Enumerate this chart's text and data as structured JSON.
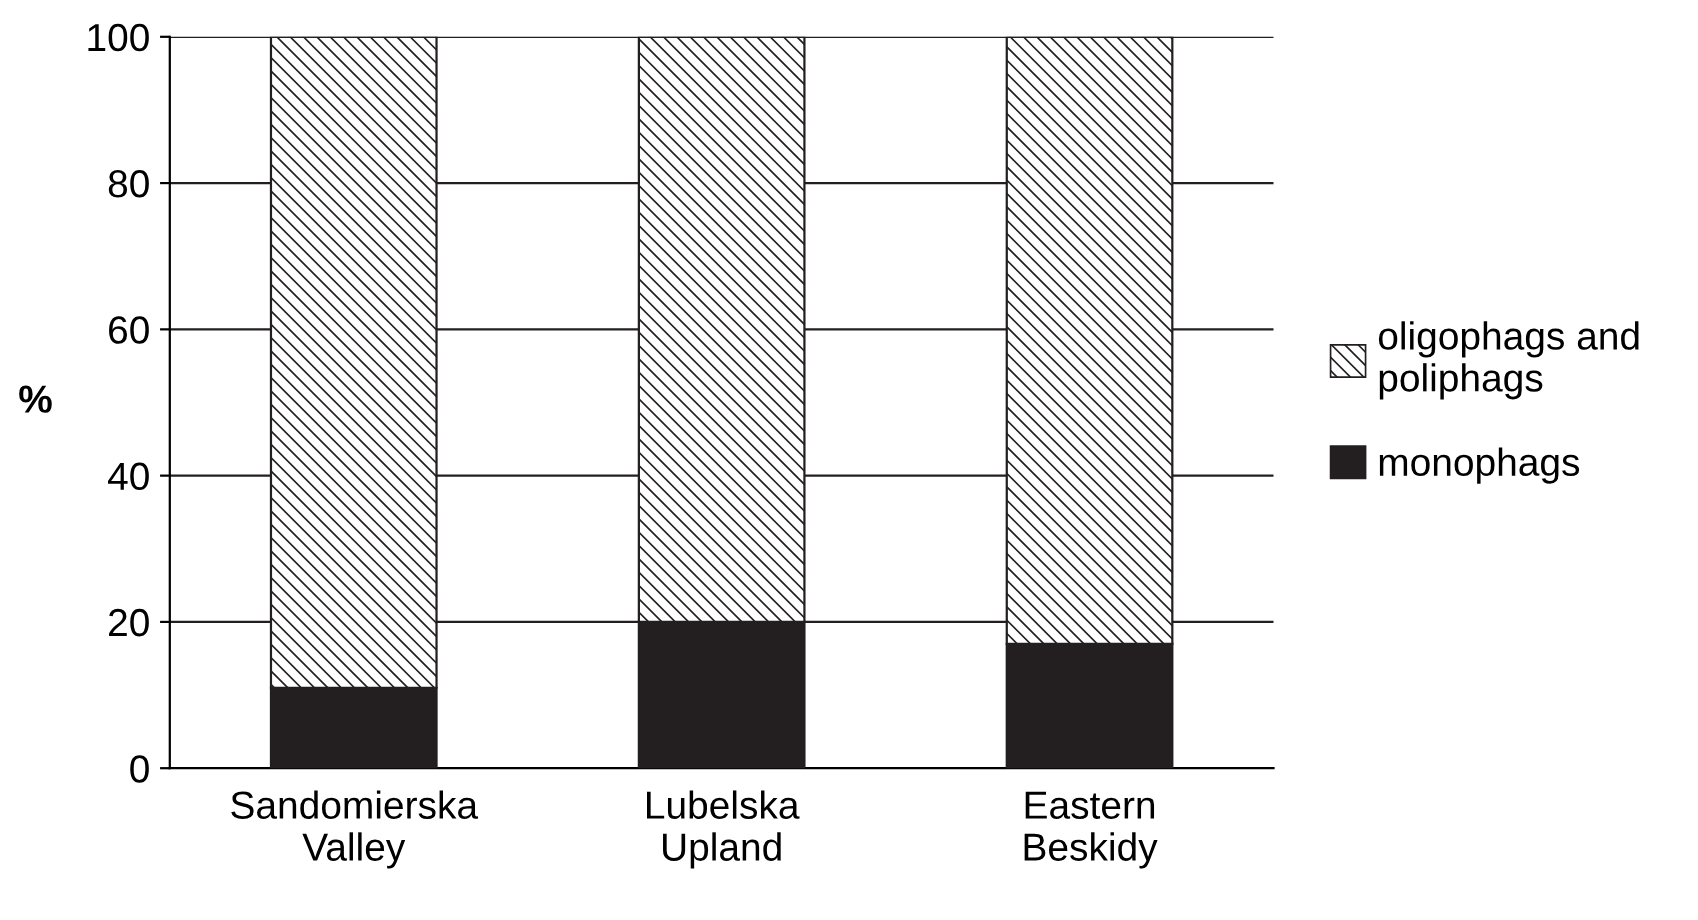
{
  "chart_data": {
    "type": "bar",
    "stacked": true,
    "categories": [
      "Sandomierska\nValley",
      "Lubelska\nUpland",
      "Eastern\nBeskidy"
    ],
    "series": [
      {
        "name": "monophags",
        "color": "#231f20",
        "values": [
          11,
          20,
          17
        ]
      },
      {
        "name": "oligophags and\npoliphags",
        "color": "#231f20",
        "values": [
          89,
          80,
          83
        ]
      }
    ],
    "ylabel": "%",
    "ylim": [
      0,
      100
    ],
    "yticks": [
      0,
      20,
      40,
      60,
      80,
      100
    ],
    "grid": "y",
    "legend": "right"
  }
}
